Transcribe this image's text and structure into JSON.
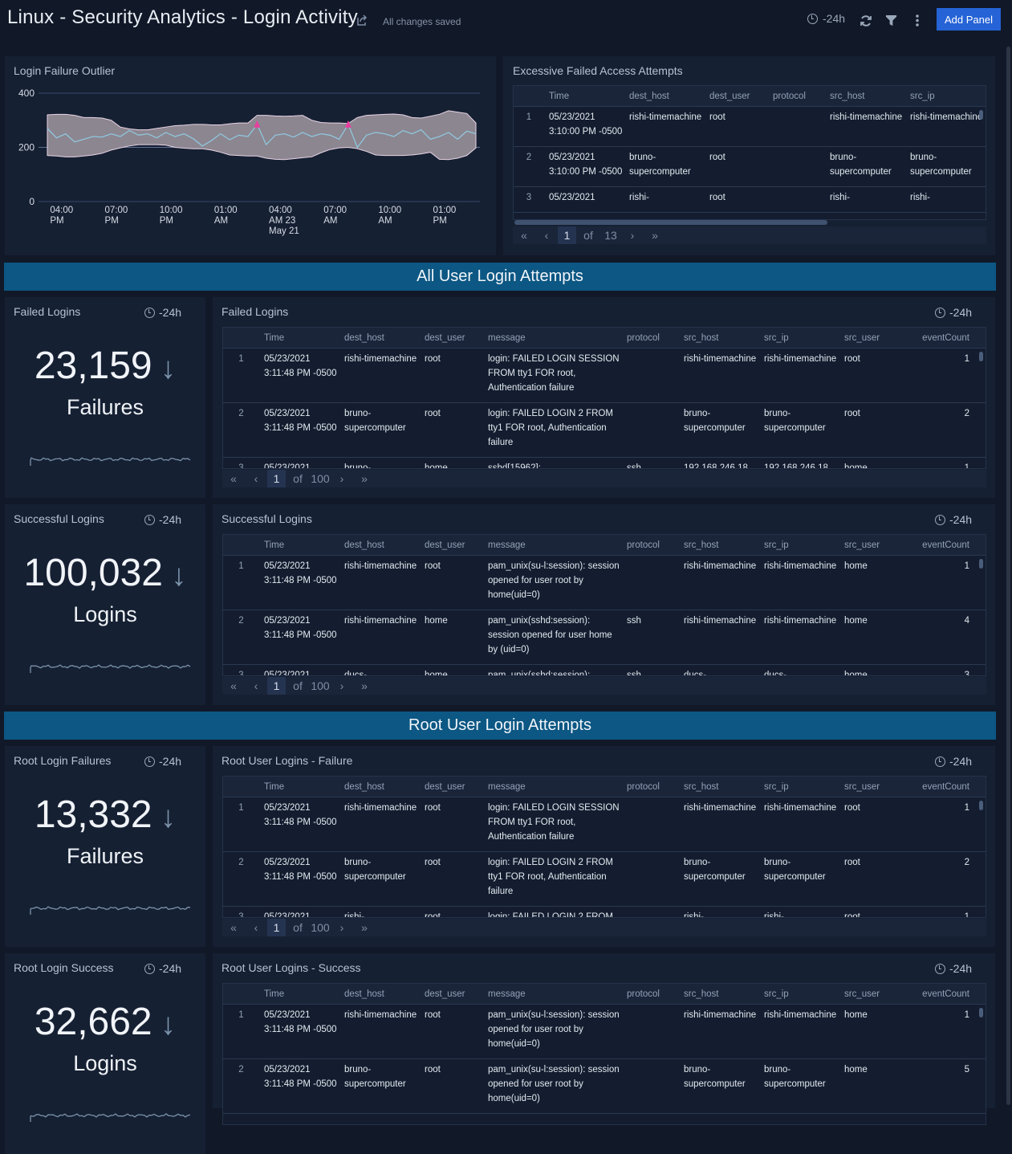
{
  "header": {
    "title": "Linux - Security Analytics - Login Activity",
    "saved": "All changes saved",
    "time_range": "-24h",
    "add_panel": "Add Panel",
    "icons": [
      "share-icon",
      "clock-icon",
      "refresh-icon",
      "filter-icon",
      "more-vert-icon"
    ]
  },
  "colors": {
    "page_bg": "#111827",
    "panel_bg": "#162033",
    "banner_bg": "#0c5783",
    "accent": "#2563d6",
    "band": "#8c8690",
    "line": "#8fc6dc",
    "outlier": "#e83e9e"
  },
  "sections": {
    "all": "All User Login Attempts",
    "root": "Root User Login Attempts"
  },
  "chart_data": {
    "type": "line",
    "title": "Login Failure Outlier",
    "xlabel": "",
    "ylabel": "",
    "ylim": [
      0,
      400
    ],
    "yticks": [
      0,
      200,
      400
    ],
    "grid": true,
    "xticks": [
      [
        "04:00",
        "PM"
      ],
      [
        "07:00",
        "PM"
      ],
      [
        "10:00",
        "PM"
      ],
      [
        "01:00",
        "AM"
      ],
      [
        "04:00",
        "AM 23",
        "May 21"
      ],
      [
        "07:00",
        "AM"
      ],
      [
        "10:00",
        "AM"
      ],
      [
        "01:00",
        "PM"
      ]
    ],
    "xtick_times": [
      "2021-05-22T16:00",
      "2021-05-22T19:00",
      "2021-05-22T22:00",
      "2021-05-23T01:00",
      "2021-05-23T04:00",
      "2021-05-23T07:00",
      "2021-05-23T10:00",
      "2021-05-23T13:00"
    ],
    "x": [
      "2021-05-22T15:30",
      "2021-05-22T16:00",
      "2021-05-22T16:30",
      "2021-05-22T17:00",
      "2021-05-22T17:30",
      "2021-05-22T18:00",
      "2021-05-22T18:30",
      "2021-05-22T19:00",
      "2021-05-22T19:30",
      "2021-05-22T20:00",
      "2021-05-22T20:30",
      "2021-05-22T21:00",
      "2021-05-22T21:30",
      "2021-05-22T22:00",
      "2021-05-22T22:30",
      "2021-05-22T23:00",
      "2021-05-22T23:30",
      "2021-05-23T00:00",
      "2021-05-23T00:30",
      "2021-05-23T01:00",
      "2021-05-23T01:30",
      "2021-05-23T02:00",
      "2021-05-23T02:30",
      "2021-05-23T03:00",
      "2021-05-23T03:30",
      "2021-05-23T04:00",
      "2021-05-23T04:30",
      "2021-05-23T05:00",
      "2021-05-23T05:30",
      "2021-05-23T06:00",
      "2021-05-23T06:30",
      "2021-05-23T07:00",
      "2021-05-23T07:30",
      "2021-05-23T08:00",
      "2021-05-23T08:30",
      "2021-05-23T09:00",
      "2021-05-23T09:30",
      "2021-05-23T10:00",
      "2021-05-23T10:30",
      "2021-05-23T11:00",
      "2021-05-23T11:30",
      "2021-05-23T12:00",
      "2021-05-23T12:30",
      "2021-05-23T13:00",
      "2021-05-23T13:30",
      "2021-05-23T14:00",
      "2021-05-23T14:30",
      "2021-05-23T15:00"
    ],
    "series": [
      {
        "values": [
          270,
          235,
          250,
          220,
          230,
          240,
          238,
          250,
          240,
          262,
          245,
          250,
          235,
          255,
          240,
          250,
          232,
          205,
          225,
          250,
          228,
          245,
          240,
          285,
          210,
          245,
          250,
          238,
          255,
          240,
          250,
          245,
          230,
          285,
          200,
          245,
          255,
          250,
          240,
          262,
          250,
          265,
          230,
          240,
          255,
          230,
          260,
          250
        ]
      }
    ],
    "band_upper": [
      320,
      322,
      322,
      318,
      310,
      310,
      308,
      300,
      275,
      268,
      265,
      265,
      270,
      275,
      280,
      282,
      285,
      285,
      283,
      283,
      287,
      290,
      290,
      318,
      318,
      316,
      315,
      316,
      318,
      300,
      292,
      290,
      290,
      288,
      310,
      318,
      320,
      322,
      323,
      320,
      310,
      308,
      315,
      322,
      335,
      330,
      325,
      290
    ],
    "band_lower": [
      170,
      168,
      165,
      165,
      168,
      172,
      178,
      190,
      198,
      205,
      210,
      210,
      210,
      208,
      200,
      197,
      195,
      195,
      190,
      182,
      172,
      170,
      168,
      168,
      160,
      156,
      155,
      158,
      162,
      165,
      180,
      192,
      198,
      200,
      195,
      185,
      172,
      170,
      170,
      170,
      172,
      176,
      182,
      156,
      155,
      160,
      170,
      198
    ],
    "outliers": [
      {
        "x": "2021-05-23T03:00",
        "y": 285
      },
      {
        "x": "2021-05-23T08:00",
        "y": 285
      }
    ]
  },
  "excessive": {
    "title": "Excessive Failed Access Attempts",
    "columns": [
      "",
      "Time",
      "dest_host",
      "dest_user",
      "protocol",
      "src_host",
      "src_ip"
    ],
    "rows": [
      [
        "1",
        "05/23/2021 3:10:00 PM -0500",
        "rishi-timemachine",
        "root",
        "",
        "rishi-timemachine",
        "rishi-timemachine"
      ],
      [
        "2",
        "05/23/2021 3:10:00 PM -0500",
        "bruno-supercomputer",
        "root",
        "",
        "bruno-supercomputer",
        "bruno-supercomputer"
      ],
      [
        "3",
        "05/23/2021",
        "rishi-",
        "root",
        "",
        "rishi-",
        "rishi-"
      ]
    ],
    "pager": {
      "page": "1",
      "of": "of",
      "total": "13"
    }
  },
  "singles": [
    {
      "title": "Failed Logins",
      "time": "-24h",
      "value": "23,159",
      "unit": "Failures",
      "trend": "down"
    },
    {
      "title": "Successful Logins",
      "time": "-24h",
      "value": "100,032",
      "unit": "Logins",
      "trend": "down"
    },
    {
      "title": "Root Login Failures",
      "time": "-24h",
      "value": "13,332",
      "unit": "Failures",
      "trend": "down"
    },
    {
      "title": "Root Login Success",
      "time": "-24h",
      "value": "32,662",
      "unit": "Logins",
      "trend": "down"
    }
  ],
  "tables": [
    {
      "title": "Failed Logins",
      "time": "-24h",
      "columns": [
        "",
        "Time",
        "dest_host",
        "dest_user",
        "message",
        "protocol",
        "src_host",
        "src_ip",
        "src_user",
        "eventCount"
      ],
      "rows": [
        [
          "1",
          "05/23/2021 3:11:48 PM -0500",
          "rishi-timemachine",
          "root",
          "login: FAILED LOGIN SESSION FROM tty1 FOR root, Authentication failure",
          "",
          "rishi-timemachine",
          "rishi-timemachine",
          "root",
          "1"
        ],
        [
          "2",
          "05/23/2021 3:11:48 PM -0500",
          "bruno-supercomputer",
          "root",
          "login: FAILED LOGIN 2 FROM tty1 FOR root, Authentication failure",
          "",
          "bruno-supercomputer",
          "bruno-supercomputer",
          "root",
          "2"
        ],
        [
          "3",
          "05/23/2021",
          "bruno-",
          "home",
          "sshd[15962]:",
          "ssh",
          "192.168.246.18",
          "192.168.246.18",
          "home",
          "1"
        ]
      ],
      "pager": {
        "page": "1",
        "of": "of",
        "total": "100"
      }
    },
    {
      "title": "Successful Logins",
      "time": "-24h",
      "columns": [
        "",
        "Time",
        "dest_host",
        "dest_user",
        "message",
        "protocol",
        "src_host",
        "src_ip",
        "src_user",
        "eventCount"
      ],
      "rows": [
        [
          "1",
          "05/23/2021 3:11:48 PM -0500",
          "rishi-timemachine",
          "root",
          "pam_unix(su-l:session): session opened for user root by home(uid=0)",
          "",
          "rishi-timemachine",
          "rishi-timemachine",
          "home",
          "1"
        ],
        [
          "2",
          "05/23/2021 3:11:48 PM -0500",
          "rishi-timemachine",
          "home",
          "pam_unix(sshd:session): session opened for user home by (uid=0)",
          "ssh",
          "rishi-timemachine",
          "rishi-timemachine",
          "home",
          "4"
        ],
        [
          "3",
          "05/23/2021",
          "ducs-",
          "home",
          "pam_unix(sshd:session):",
          "ssh",
          "ducs-",
          "ducs-",
          "home",
          "3"
        ]
      ],
      "pager": {
        "page": "1",
        "of": "of",
        "total": "100"
      }
    },
    {
      "title": "Root User Logins - Failure",
      "time": "-24h",
      "columns": [
        "",
        "Time",
        "dest_host",
        "dest_user",
        "message",
        "protocol",
        "src_host",
        "src_ip",
        "src_user",
        "eventCount"
      ],
      "rows": [
        [
          "1",
          "05/23/2021 3:11:48 PM -0500",
          "rishi-timemachine",
          "root",
          "login: FAILED LOGIN SESSION FROM tty1 FOR root, Authentication failure",
          "",
          "rishi-timemachine",
          "rishi-timemachine",
          "root",
          "1"
        ],
        [
          "2",
          "05/23/2021 3:11:48 PM -0500",
          "bruno-supercomputer",
          "root",
          "login: FAILED LOGIN 2 FROM tty1 FOR root, Authentication failure",
          "",
          "bruno-supercomputer",
          "bruno-supercomputer",
          "root",
          "2"
        ],
        [
          "3",
          "05/23/2021",
          "rishi-",
          "root",
          "login: FAILED LOGIN 2 FROM",
          "",
          "rishi-",
          "rishi-",
          "root",
          "1"
        ]
      ],
      "pager": {
        "page": "1",
        "of": "of",
        "total": "100"
      }
    },
    {
      "title": "Root User Logins - Success",
      "time": "-24h",
      "columns": [
        "",
        "Time",
        "dest_host",
        "dest_user",
        "message",
        "protocol",
        "src_host",
        "src_ip",
        "src_user",
        "eventCount"
      ],
      "rows": [
        [
          "1",
          "05/23/2021 3:11:48 PM -0500",
          "rishi-timemachine",
          "root",
          "pam_unix(su-l:session): session opened for user root by home(uid=0)",
          "",
          "rishi-timemachine",
          "rishi-timemachine",
          "home",
          "1"
        ],
        [
          "2",
          "05/23/2021 3:11:48 PM -0500",
          "bruno-supercomputer",
          "root",
          "pam_unix(su-l:session): session opened for user root by home(uid=0)",
          "",
          "bruno-supercomputer",
          "bruno-supercomputer",
          "home",
          "5"
        ]
      ]
    }
  ]
}
